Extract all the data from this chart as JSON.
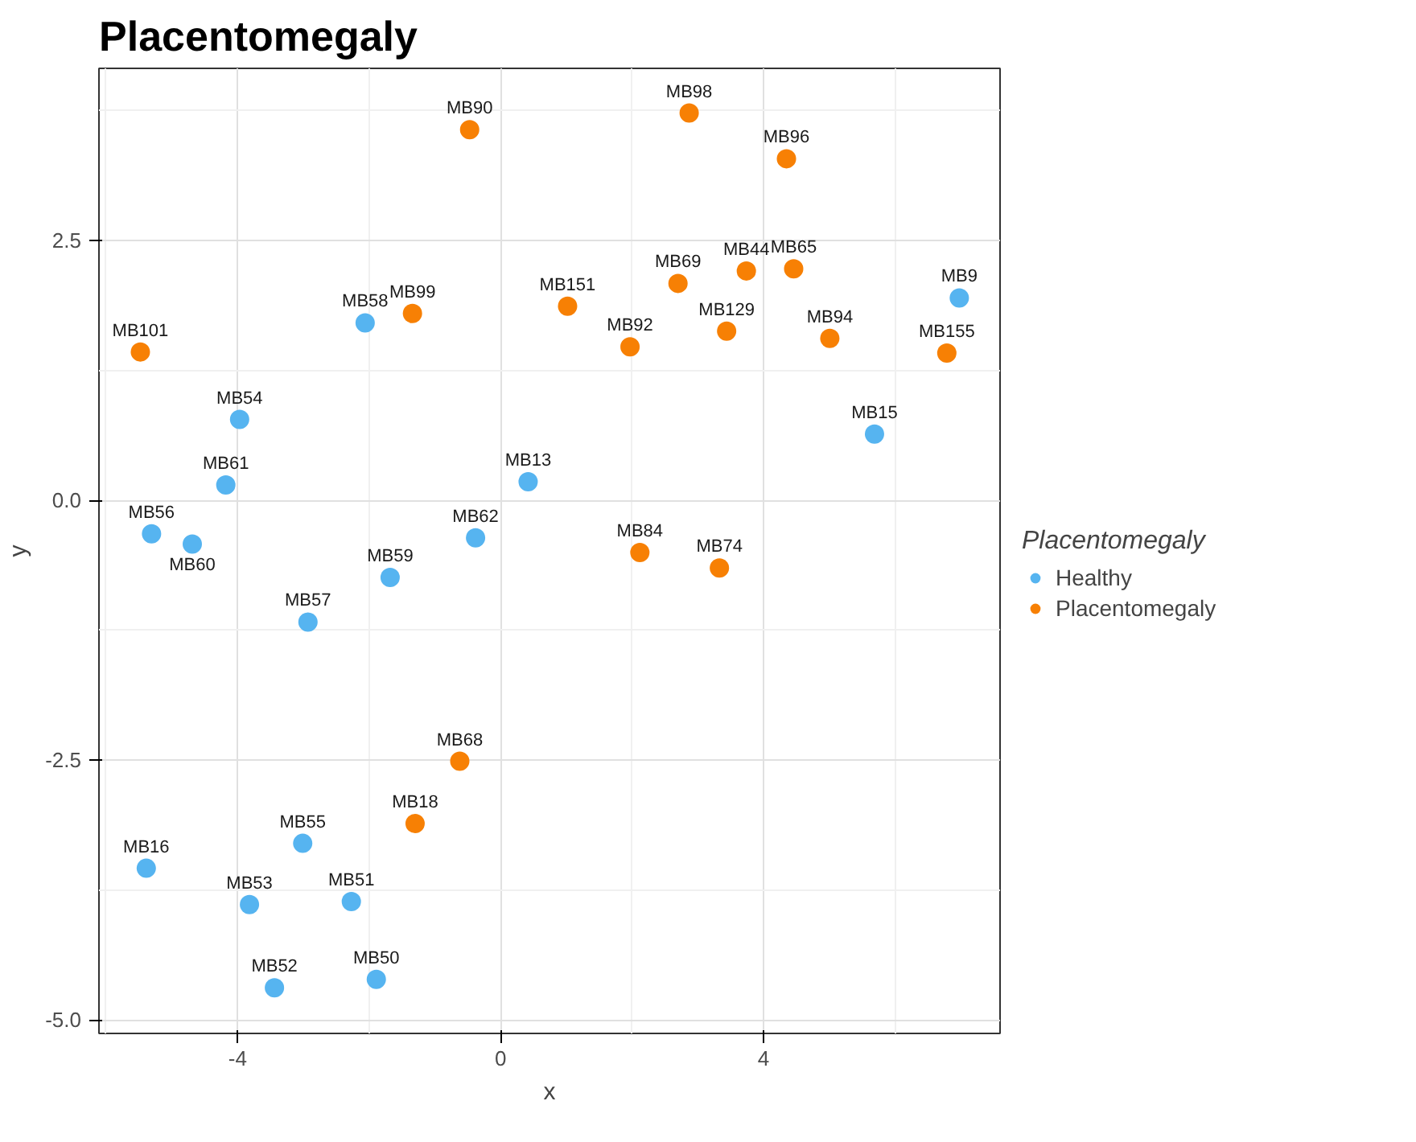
{
  "chart_data": {
    "type": "scatter",
    "title": "Placentomegaly",
    "xlabel": "x",
    "ylabel": "y",
    "legend_title": "Placentomegaly",
    "legend": "right",
    "grid": true,
    "marker": "circle",
    "xlim": [
      -6.11,
      7.6
    ],
    "ylim": [
      -5.13,
      4.16
    ],
    "xticks": [
      -4,
      0,
      4
    ],
    "yticks": [
      {
        "value": -5,
        "label": "-5.0"
      },
      {
        "value": -2.5,
        "label": "-2.5"
      },
      {
        "value": 0,
        "label": "0.0"
      },
      2.5
    ],
    "series": [
      {
        "name": "Healthy",
        "color": "#56b4f0",
        "x": [
          6.98,
          5.69,
          -2.06,
          -3.97,
          -4.18,
          -5.31,
          -4.69,
          0.42,
          -0.38,
          -1.68,
          -2.93,
          -3.01,
          -5.39,
          -3.82,
          -2.27,
          -3.44,
          -1.89
        ],
        "values": [
          1.95,
          0.64,
          1.71,
          0.78,
          0.15,
          -0.32,
          -0.42,
          0.18,
          -0.36,
          -0.74,
          -1.17,
          -3.3,
          -3.54,
          -3.89,
          -3.86,
          -4.69,
          -4.61
        ],
        "value_labels": [
          "MB9",
          "MB15",
          "MB58",
          "MB54",
          "MB61",
          "MB56",
          "MB60",
          "MB13",
          "MB62",
          "MB59",
          "MB57",
          "MB55",
          "MB16",
          "MB53",
          "MB51",
          "MB52",
          "MB50"
        ]
      },
      {
        "name": "Placentomegaly",
        "color": "#f78004",
        "x": [
          -5.48,
          -1.34,
          -0.47,
          2.87,
          4.35,
          4.46,
          3.74,
          2.7,
          1.02,
          1.97,
          3.44,
          5.01,
          6.79,
          2.12,
          3.33,
          -0.62,
          -1.3
        ],
        "values": [
          1.43,
          1.8,
          3.57,
          3.73,
          3.29,
          2.23,
          2.21,
          2.09,
          1.87,
          1.48,
          1.63,
          1.56,
          1.42,
          -0.5,
          -0.65,
          -2.51,
          -3.11
        ],
        "value_labels": [
          "MB101",
          "MB99",
          "MB90",
          "MB98",
          "MB96",
          "MB65",
          "MB44",
          "MB69",
          "MB151",
          "MB92",
          "MB129",
          "MB94",
          "MB155",
          "MB84",
          "MB74",
          "MB68",
          "MB18"
        ]
      }
    ]
  }
}
